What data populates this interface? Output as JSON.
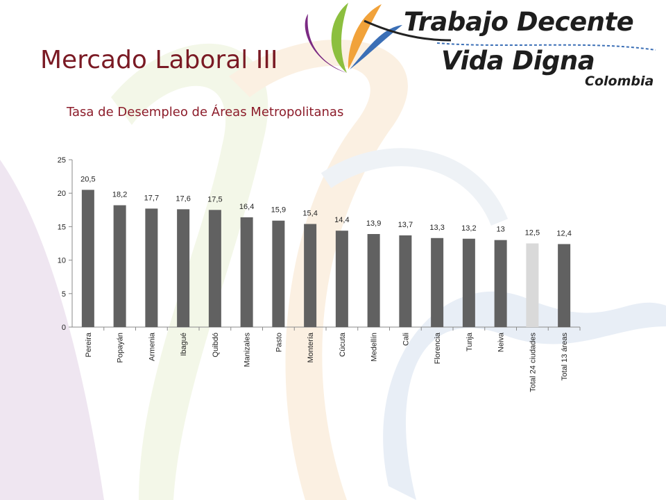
{
  "slide": {
    "title": "Mercado Laboral III",
    "subtitle": "Tasa de Desempleo de Áreas Metropolitanas"
  },
  "logo": {
    "line1": "Trabajo Decente",
    "line2": "Vida Digna",
    "line3": "Colombia"
  },
  "colors": {
    "title": "#7a1a24",
    "bar": "#616161",
    "bar_highlight": "#d9d9d9",
    "logo_purple": "#7b2a83",
    "logo_green": "#8cbf3f",
    "logo_orange": "#f1a23a",
    "logo_blue": "#3b6fb6"
  },
  "chart_data": {
    "type": "bar",
    "title": "",
    "xlabel": "",
    "ylabel": "",
    "ylim": [
      0,
      25
    ],
    "yticks": [
      0,
      5,
      10,
      15,
      20,
      25
    ],
    "grid": false,
    "categories": [
      "Pereira",
      "Popayán",
      "Armenia",
      "Ibagué",
      "Quibdó",
      "Manizales",
      "Pasto",
      "Montería",
      "Cúcuta",
      "Medellín",
      "Cali",
      "Florencia",
      "Tunja",
      "Neiva",
      "Total 24 ciudades",
      "Total 13 áreas"
    ],
    "values": [
      20.5,
      18.2,
      17.7,
      17.6,
      17.5,
      16.4,
      15.9,
      15.4,
      14.4,
      13.9,
      13.7,
      13.3,
      13.2,
      13,
      12.5,
      12.4
    ],
    "data_labels": [
      "20,5",
      "18,2",
      "17,7",
      "17,6",
      "17,5",
      "16,4",
      "15,9",
      "15,4",
      "14,4",
      "13,9",
      "13,7",
      "13,3",
      "13,2",
      "13",
      "12,5",
      "12,4"
    ],
    "highlight_index": 14
  }
}
